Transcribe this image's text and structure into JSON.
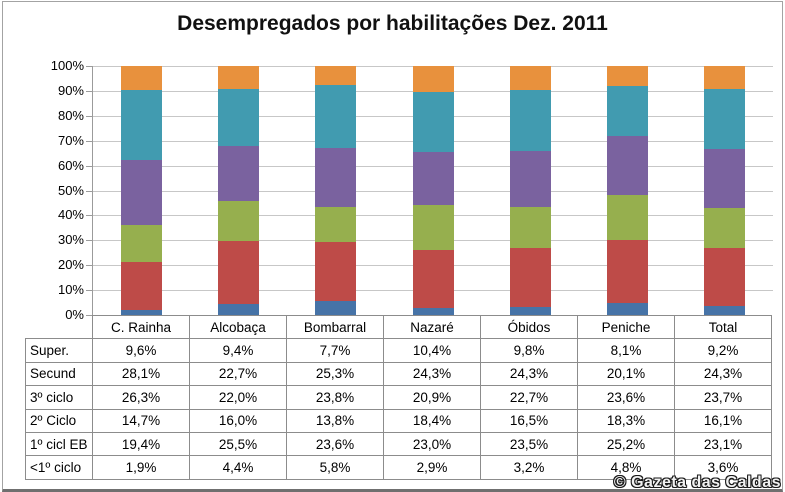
{
  "title": "Desempregados por habilitações Dez. 2011",
  "watermark": "© Gazeta das Caldas",
  "colors": {
    "super": "#E8913D",
    "secund": "#419BB0",
    "ciclo3": "#7A629F",
    "ciclo2": "#96AF4E",
    "ciclo1_eb": "#BE4B48",
    "menos1ciclo": "#4673A7",
    "gridline": "#C7C7C7",
    "axis": "#9B9B9B",
    "table_border": "#8C8C8C"
  },
  "chart_data": {
    "type": "bar",
    "subtype": "stacked-100-percent",
    "title": "Desempregados por habilitações Dez. 2011",
    "categories": [
      "C. Rainha",
      "Alcobaça",
      "Bombarral",
      "Nazaré",
      "Óbidos",
      "Peniche",
      "Total"
    ],
    "series": [
      {
        "name": "Super.",
        "color": "#E8913D",
        "values": [
          9.6,
          9.4,
          7.7,
          10.4,
          9.8,
          8.1,
          9.2
        ],
        "labels": [
          "9,6%",
          "9,4%",
          "7,7%",
          "10,4%",
          "9,8%",
          "8,1%",
          "9,2%"
        ]
      },
      {
        "name": "Secund",
        "color": "#419BB0",
        "values": [
          28.1,
          22.7,
          25.3,
          24.3,
          24.3,
          20.1,
          24.3
        ],
        "labels": [
          "28,1%",
          "22,7%",
          "25,3%",
          "24,3%",
          "24,3%",
          "20,1%",
          "24,3%"
        ]
      },
      {
        "name": "3º ciclo",
        "color": "#7A629F",
        "values": [
          26.3,
          22.0,
          23.8,
          20.9,
          22.7,
          23.6,
          23.7
        ],
        "labels": [
          "26,3%",
          "22,0%",
          "23,8%",
          "20,9%",
          "22,7%",
          "23,6%",
          "23,7%"
        ]
      },
      {
        "name": "2º Ciclo",
        "color": "#96AF4E",
        "values": [
          14.7,
          16.0,
          13.8,
          18.4,
          16.5,
          18.3,
          16.1
        ],
        "labels": [
          "14,7%",
          "16,0%",
          "13,8%",
          "18,4%",
          "16,5%",
          "18,3%",
          "16,1%"
        ]
      },
      {
        "name": "1º cicl EB",
        "color": "#BE4B48",
        "values": [
          19.4,
          25.5,
          23.6,
          23.0,
          23.5,
          25.2,
          23.1
        ],
        "labels": [
          "19,4%",
          "25,5%",
          "23,6%",
          "23,0%",
          "23,5%",
          "25,2%",
          "23,1%"
        ]
      },
      {
        "name": "<1º ciclo",
        "color": "#4673A7",
        "values": [
          1.9,
          4.4,
          5.8,
          2.9,
          3.2,
          4.8,
          3.6
        ],
        "labels": [
          "1,9%",
          "4,4%",
          "5,8%",
          "2,9%",
          "3,2%",
          "4,8%",
          "3,6%"
        ]
      }
    ],
    "stack_order_bottom_to_top": [
      "<1º ciclo",
      "1º cicl EB",
      "2º Ciclo",
      "3º ciclo",
      "Secund",
      "Super."
    ],
    "xlabel": "",
    "ylabel": "",
    "ylim": [
      0,
      100
    ],
    "y_ticks": [
      "0%",
      "10%",
      "20%",
      "30%",
      "40%",
      "50%",
      "60%",
      "70%",
      "80%",
      "90%",
      "100%"
    ],
    "grid": true,
    "legend_position": "none",
    "data_table_attached": true
  }
}
